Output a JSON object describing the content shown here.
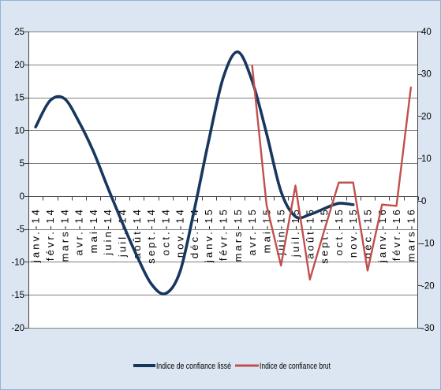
{
  "chart_data": {
    "type": "line",
    "categories": [
      "janv.-14",
      "févr.-14",
      "mars-14",
      "avr.-14",
      "mai-14",
      "juin-14",
      "juil.-14",
      "août-14",
      "sept.-14",
      "oct.-14",
      "nov.-14",
      "déc.-14",
      "janv.-15",
      "févr.-15",
      "mars-15",
      "avr.-15",
      "mai-15",
      "juin-15",
      "juil.-15",
      "août-15",
      "sept.-15",
      "oct.-15",
      "nov.-15",
      "déc.-15",
      "janv.-16",
      "févr.-16",
      "mars-16"
    ],
    "series": [
      {
        "name": "Indice de confiance lissé",
        "secondary_axis": false,
        "smooth": true,
        "color": "#17375e",
        "values": [
          10.5,
          14.5,
          14.8,
          11.3,
          6.8,
          1.3,
          -4,
          -9,
          -13.3,
          -14.8,
          -11.5,
          -2,
          8.5,
          18,
          21.9,
          17.5,
          9.5,
          0.7,
          -3.1,
          -2.8,
          -1.9,
          -1.1,
          -1.3,
          null,
          null,
          null,
          null
        ]
      },
      {
        "name": "Indice de confiance brut",
        "secondary_axis": true,
        "smooth": false,
        "color": "#c0504d",
        "values": [
          null,
          null,
          null,
          null,
          null,
          null,
          null,
          null,
          null,
          null,
          null,
          null,
          null,
          null,
          null,
          32,
          -1,
          -15.3,
          3.6,
          -18.6,
          -7,
          4.3,
          4.3,
          -16.5,
          -0.9,
          -1.2,
          26.8
        ]
      }
    ],
    "y_left": {
      "min": -20,
      "max": 25,
      "ticks": [
        25,
        20,
        15,
        10,
        5,
        0,
        -5,
        -10,
        -15,
        -20
      ]
    },
    "y_right": {
      "min": -30,
      "max": 40,
      "ticks": [
        40,
        30,
        20,
        10,
        0,
        -10,
        -20,
        -30
      ]
    },
    "grid": true,
    "legend": "bottom",
    "background_color": "#dce6f2",
    "plot_color": "#ffffff",
    "gridline_color": "#7f7f7f"
  }
}
